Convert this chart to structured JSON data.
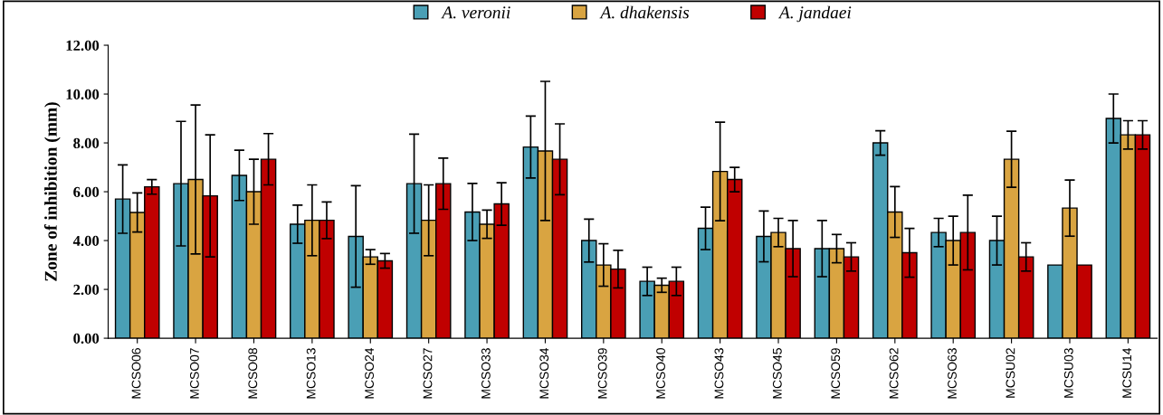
{
  "chart_data": {
    "type": "bar",
    "ylabel": "Zone of inhibition (mm)",
    "categories": [
      "MCSO06",
      "MCSO07",
      "MCSO08",
      "MCSO13",
      "MCSO24",
      "MCSO27",
      "MCSO33",
      "MCSO34",
      "MCSO39",
      "MCSO40",
      "MCSO43",
      "MCSO45",
      "MCSO59",
      "MCSO62",
      "MCSO63",
      "MCSU02",
      "MCSU03",
      "MCSU14"
    ],
    "series": [
      {
        "name": "A. veronii",
        "color": "#4a9fb5",
        "values": [
          5.7,
          6.33,
          6.67,
          4.67,
          4.17,
          6.33,
          5.17,
          7.83,
          4.0,
          2.33,
          4.5,
          4.17,
          3.67,
          8.0,
          4.33,
          4.0,
          3.0,
          9.0
        ],
        "errors": [
          1.4,
          2.55,
          1.03,
          0.78,
          2.08,
          2.03,
          1.17,
          1.27,
          0.88,
          0.58,
          0.87,
          1.04,
          1.15,
          0.5,
          0.58,
          1.0,
          null,
          1.0
        ]
      },
      {
        "name": "A. dhakensis",
        "color": "#d9a441",
        "values": [
          5.15,
          6.5,
          6.0,
          4.83,
          3.33,
          4.83,
          4.67,
          7.67,
          3.0,
          2.17,
          6.83,
          4.33,
          3.67,
          5.17,
          4.0,
          7.33,
          5.33,
          8.33
        ],
        "errors": [
          0.8,
          3.05,
          1.33,
          1.45,
          0.3,
          1.45,
          0.58,
          2.85,
          0.87,
          0.29,
          2.02,
          0.58,
          0.58,
          1.04,
          1.0,
          1.15,
          1.15,
          0.58
        ]
      },
      {
        "name": "A. jandaei",
        "color": "#c00000",
        "values": [
          6.2,
          5.83,
          7.33,
          4.83,
          3.17,
          6.33,
          5.5,
          7.33,
          2.83,
          2.33,
          6.5,
          3.67,
          3.33,
          3.5,
          4.33,
          3.33,
          3.0,
          8.33
        ],
        "errors": [
          0.3,
          2.5,
          1.05,
          0.75,
          0.3,
          1.05,
          0.87,
          1.45,
          0.77,
          0.58,
          0.5,
          1.15,
          0.58,
          1.0,
          1.53,
          0.58,
          null,
          0.58
        ]
      }
    ],
    "ylim": [
      0,
      12
    ],
    "yticks": [
      {
        "value": 0,
        "label": "0.00"
      },
      {
        "value": 2,
        "label": "2.00"
      },
      {
        "value": 4,
        "label": "4.00"
      },
      {
        "value": 6,
        "label": "6.00"
      },
      {
        "value": 8,
        "label": "8.00"
      },
      {
        "value": 10,
        "label": "10.00"
      },
      {
        "value": 12,
        "label": "12.00"
      }
    ],
    "grid": false,
    "legend": "top"
  }
}
